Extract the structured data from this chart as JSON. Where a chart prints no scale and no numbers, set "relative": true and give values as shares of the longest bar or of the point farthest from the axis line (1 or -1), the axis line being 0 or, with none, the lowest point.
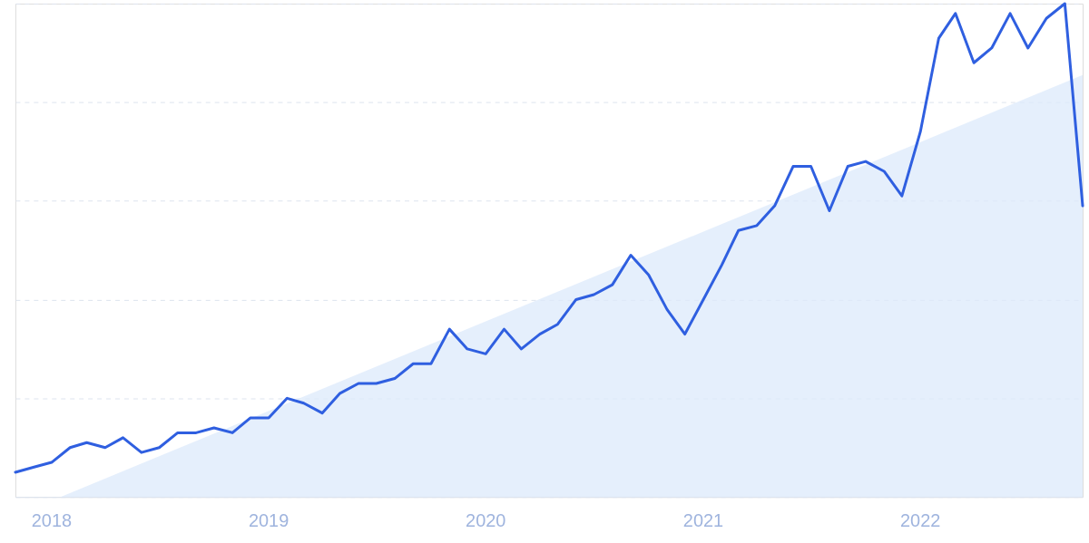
{
  "chart_data": {
    "type": "line",
    "relative": true,
    "grid": "y",
    "x": [
      "2017-11",
      "2017-12",
      "2018-01",
      "2018-02",
      "2018-03",
      "2018-04",
      "2018-05",
      "2018-06",
      "2018-07",
      "2018-08",
      "2018-09",
      "2018-10",
      "2018-11",
      "2018-12",
      "2019-01",
      "2019-02",
      "2019-03",
      "2019-04",
      "2019-05",
      "2019-06",
      "2019-07",
      "2019-08",
      "2019-09",
      "2019-10",
      "2019-11",
      "2019-12",
      "2020-01",
      "2020-02",
      "2020-03",
      "2020-04",
      "2020-05",
      "2020-06",
      "2020-07",
      "2020-08",
      "2020-09",
      "2020-10",
      "2020-11",
      "2020-12",
      "2021-01",
      "2021-02",
      "2021-03",
      "2021-04",
      "2021-05",
      "2021-06",
      "2021-07",
      "2021-08",
      "2021-09",
      "2021-10",
      "2021-11",
      "2021-12",
      "2022-01",
      "2022-02",
      "2022-03",
      "2022-04",
      "2022-05",
      "2022-06",
      "2022-07",
      "2022-08",
      "2022-09",
      "2022-10"
    ],
    "xlim": [
      "2017-11",
      "2022-10"
    ],
    "xticks": [
      {
        "value": "2018-01",
        "label": "2018"
      },
      {
        "value": "2019-01",
        "label": "2019"
      },
      {
        "value": "2020-01",
        "label": "2020"
      },
      {
        "value": "2021-01",
        "label": "2021"
      },
      {
        "value": "2022-01",
        "label": "2022"
      }
    ],
    "series": [
      {
        "type": "area",
        "color": "#dce9fb",
        "x": [
          "2018-01-16",
          "2022-10"
        ],
        "values": [
          0,
          0.855
        ]
      },
      {
        "color": "#2f5fe0",
        "values": [
          0.05,
          0.06,
          0.07,
          0.1,
          0.11,
          0.1,
          0.12,
          0.09,
          0.1,
          0.13,
          0.13,
          0.14,
          0.13,
          0.16,
          0.16,
          0.2,
          0.19,
          0.17,
          0.21,
          0.23,
          0.23,
          0.24,
          0.27,
          0.27,
          0.34,
          0.3,
          0.29,
          0.34,
          0.3,
          0.33,
          0.35,
          0.4,
          0.41,
          0.43,
          0.49,
          0.45,
          0.38,
          0.33,
          0.4,
          0.47,
          0.54,
          0.55,
          0.59,
          0.67,
          0.67,
          0.58,
          0.67,
          0.68,
          0.66,
          0.61,
          0.74,
          0.93,
          0.98,
          0.88,
          0.91,
          0.98,
          0.91,
          0.97,
          1.0,
          0.59
        ]
      }
    ]
  }
}
